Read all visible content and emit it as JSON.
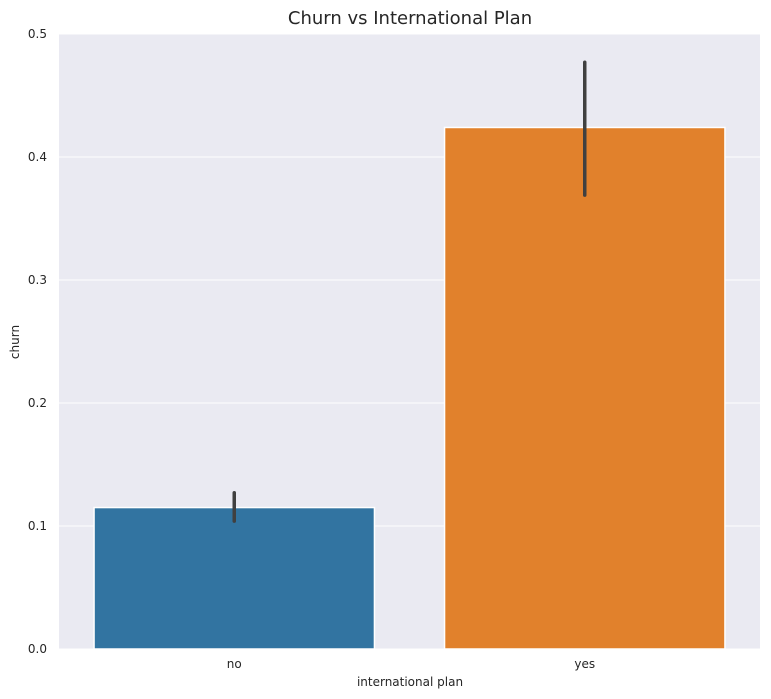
{
  "chart_data": {
    "type": "bar",
    "title": "Churn vs International Plan",
    "xlabel": "international plan",
    "ylabel": "churn",
    "categories": [
      "no",
      "yes"
    ],
    "values": [
      0.115,
      0.424
    ],
    "error_bars": [
      {
        "low": 0.104,
        "high": 0.127
      },
      {
        "low": 0.369,
        "high": 0.477
      }
    ],
    "ylim": [
      0,
      0.5
    ],
    "yticks": [
      "0.0",
      "0.1",
      "0.2",
      "0.3",
      "0.4",
      "0.5"
    ],
    "grid": true,
    "colors": {
      "no": "#3274a1",
      "yes": "#e1812c",
      "background": "#eaeaf2",
      "grid": "#ffffff",
      "errorbar": "#404040"
    }
  }
}
